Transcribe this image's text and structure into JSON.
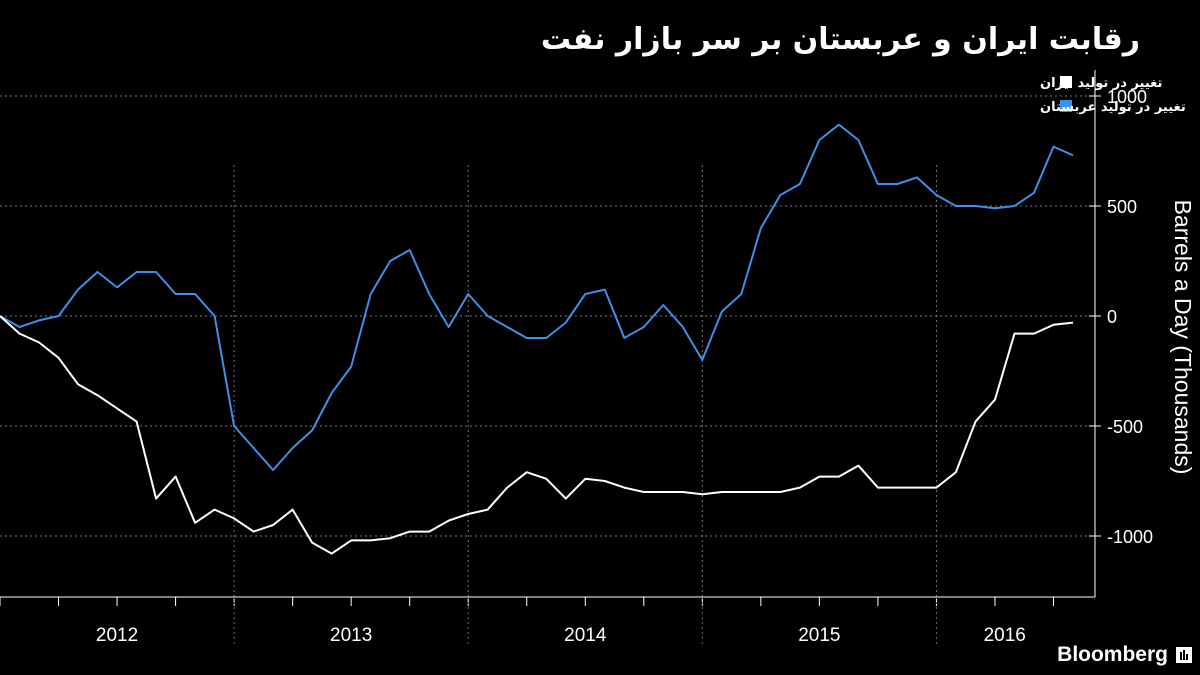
{
  "title": "رقابت ایران و عربستان بر سر بازار نفت",
  "brand": "Bloomberg",
  "chart_data": {
    "type": "line",
    "title": "رقابت ایران و عربستان بر سر بازار نفت",
    "ylabel": "Barrels a Day (Thousands)",
    "xlabel": "",
    "ylim": [
      -1250,
      1000
    ],
    "yticks": [
      1000,
      500,
      0,
      -500,
      -1000
    ],
    "ytick_labels": [
      "1000",
      "500",
      "0",
      "-500",
      "-1000"
    ],
    "xlim": [
      0,
      55
    ],
    "year_labels": [
      {
        "label": "2012",
        "start": 0,
        "end": 12
      },
      {
        "label": "2013",
        "start": 12,
        "end": 24
      },
      {
        "label": "2014",
        "start": 24,
        "end": 36
      },
      {
        "label": "2015",
        "start": 36,
        "end": 48
      },
      {
        "label": "2016",
        "start": 48,
        "end": 55
      }
    ],
    "grid": true,
    "legend_position": "top-right",
    "series": [
      {
        "name": "تغییر در تولید عربستان",
        "color": "#3f8fe8",
        "values": [
          0,
          -50,
          -20,
          0,
          120,
          200,
          130,
          200,
          200,
          100,
          100,
          0,
          -500,
          -600,
          -700,
          -600,
          -520,
          -350,
          -230,
          100,
          250,
          300,
          100,
          -50,
          100,
          0,
          -50,
          -100,
          -100,
          -30,
          100,
          120,
          -100,
          -50,
          50,
          -50,
          -200,
          20,
          100,
          400,
          550,
          600,
          800,
          870,
          800,
          600,
          600,
          630,
          550,
          500,
          500,
          490,
          500,
          560,
          770,
          730
        ]
      },
      {
        "name": "تغییر در تولید ایران",
        "color": "#ffffff",
        "values": [
          0,
          -80,
          -120,
          -190,
          -310,
          -360,
          -420,
          -480,
          -830,
          -730,
          -940,
          -880,
          -920,
          -980,
          -950,
          -880,
          -1030,
          -1080,
          -1020,
          -1020,
          -1010,
          -980,
          -980,
          -930,
          -900,
          -880,
          -780,
          -710,
          -740,
          -830,
          -740,
          -750,
          -780,
          -800,
          -800,
          -800,
          -810,
          -800,
          -800,
          -800,
          -800,
          -780,
          -730,
          -730,
          -680,
          -780,
          -780,
          -780,
          -780,
          -710,
          -480,
          -380,
          -80,
          -80,
          -40,
          -30
        ]
      }
    ]
  }
}
